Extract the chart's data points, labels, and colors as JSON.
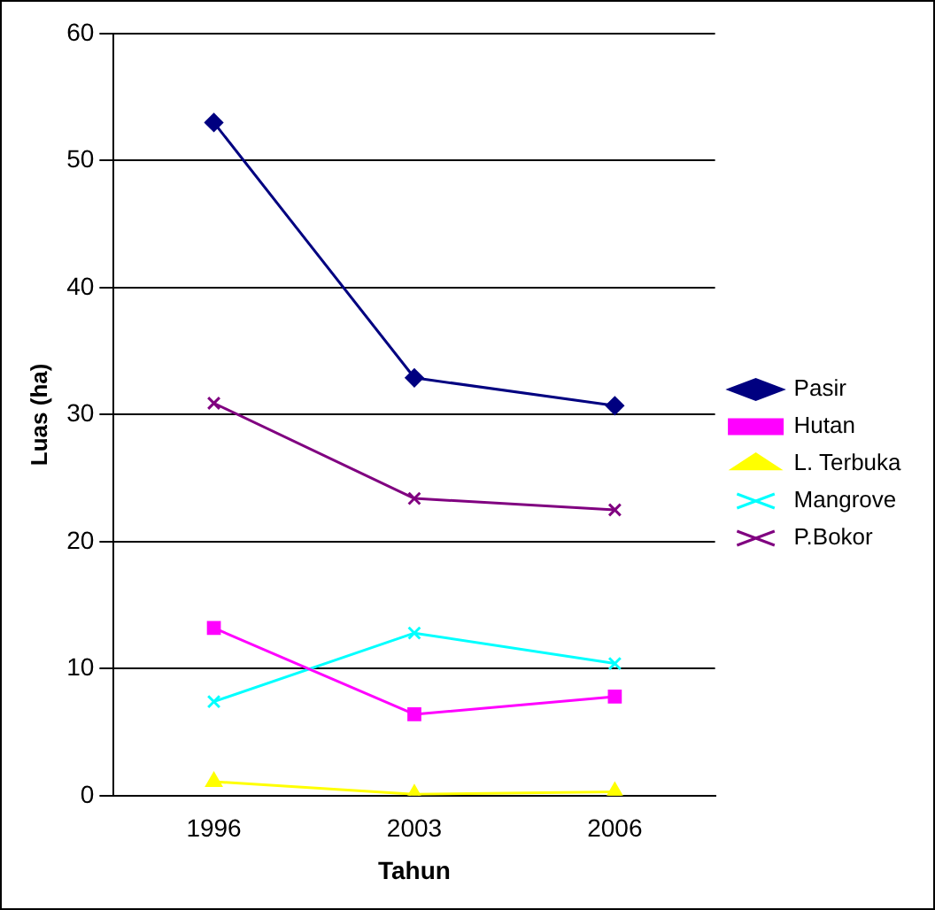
{
  "chart_data": {
    "type": "line",
    "xlabel": "Tahun",
    "ylabel": "Luas (ha)",
    "categories": [
      "1996",
      "2003",
      "2006"
    ],
    "series": [
      {
        "name": "Pasir",
        "color": "#000080",
        "marker": "diamond",
        "values": [
          53,
          32.9,
          30.7
        ]
      },
      {
        "name": "Hutan",
        "color": "#ff00ff",
        "marker": "square",
        "values": [
          13.2,
          6.4,
          7.8
        ]
      },
      {
        "name": "L. Terbuka",
        "color": "#ffff00",
        "marker": "triangle",
        "values": [
          1.1,
          0.1,
          0.3
        ]
      },
      {
        "name": "Mangrove",
        "color": "#00ffff",
        "marker": "cross",
        "values": [
          7.4,
          12.8,
          10.4
        ]
      },
      {
        "name": "P.Bokor",
        "color": "#800080",
        "marker": "cross",
        "values": [
          30.9,
          23.4,
          22.5
        ]
      }
    ],
    "ylim": [
      0,
      60
    ],
    "yticks": [
      0,
      10,
      20,
      30,
      40,
      50,
      60
    ],
    "grid": "y",
    "legend": "right",
    "line_style": "solid"
  }
}
